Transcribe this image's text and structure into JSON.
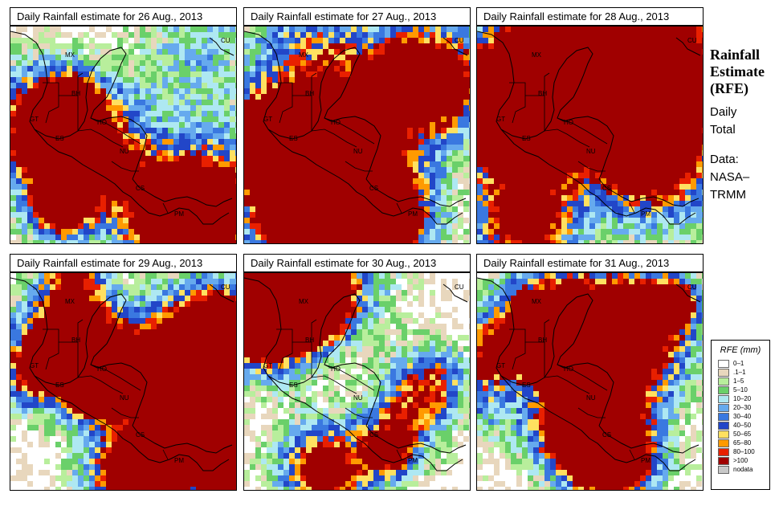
{
  "panels": [
    {
      "title": "Daily Rainfall estimate for  26 Aug., 2013",
      "seed": 11,
      "base": 1.0
    },
    {
      "title": "Daily Rainfall estimate for  27 Aug., 2013",
      "seed": 23,
      "base": 1.15
    },
    {
      "title": "Daily Rainfall estimate for  28 Aug., 2013",
      "seed": 37,
      "base": 1.2
    },
    {
      "title": "Daily Rainfall estimate for  29 Aug., 2013",
      "seed": 41,
      "base": 1.05
    },
    {
      "title": "Daily Rainfall estimate for  30 Aug., 2013",
      "seed": 53,
      "base": 0.95
    },
    {
      "title": "Daily Rainfall estimate for  31 Aug., 2013",
      "seed": 67,
      "base": 1.1
    }
  ],
  "country_labels": [
    "MX",
    "BH",
    "GT",
    "HO",
    "ES",
    "NU",
    "CS",
    "PM",
    "CU"
  ],
  "side": {
    "title_lines": [
      "Rainfall",
      "Estimate",
      "(RFE)"
    ],
    "daily": [
      "Daily",
      "Total"
    ],
    "data": [
      "Data:",
      "NASA–",
      "TRMM"
    ]
  },
  "legend": {
    "title": "RFE (mm)",
    "items": [
      {
        "label": "0–1",
        "color": "#ffffff"
      },
      {
        "label": ".1–1",
        "color": "#e8d7bd"
      },
      {
        "label": "1–5",
        "color": "#b8ee9c"
      },
      {
        "label": "5–10",
        "color": "#6ad06a"
      },
      {
        "label": "10–20",
        "color": "#aee8f2"
      },
      {
        "label": "20–30",
        "color": "#66aaee"
      },
      {
        "label": "30–40",
        "color": "#3a78e0"
      },
      {
        "label": "40–50",
        "color": "#2246c8"
      },
      {
        "label": "50–65",
        "color": "#ffe060"
      },
      {
        "label": "65–80",
        "color": "#ff9a00"
      },
      {
        "label": "80–100",
        "color": "#e82000"
      },
      {
        "label": ">100",
        "color": "#a00000"
      },
      {
        "label": "nodata",
        "color": "#c8c8c8"
      }
    ]
  }
}
